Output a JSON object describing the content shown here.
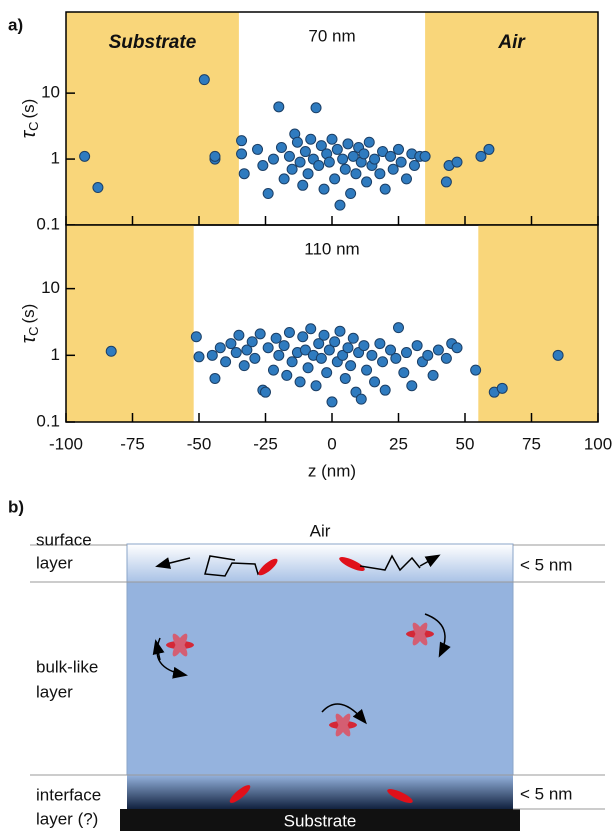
{
  "panel_label": "a)",
  "chart_data": [
    {
      "type": "scatter",
      "annotation": "70 nm",
      "ylabel": [
        "τ",
        "C",
        "(s)"
      ],
      "xlim": [
        -100,
        100
      ],
      "xticks": [
        -100,
        -75,
        -50,
        -25,
        0,
        25,
        50,
        75,
        100
      ],
      "xtick_labels": false,
      "ylim": [
        0.1,
        170
      ],
      "yticks": [
        0.1,
        1,
        10
      ],
      "ylog": true,
      "region_color": "#f9d67a",
      "regions": [
        {
          "label": "Substrate",
          "range": [
            -100,
            -35
          ]
        },
        {
          "label": "Air",
          "range": [
            35,
            100
          ]
        }
      ],
      "color": "#2f7bbf",
      "x": [
        -93,
        -88,
        -48,
        -44,
        -44,
        43,
        44,
        47,
        56,
        59,
        -34,
        -34,
        -33,
        -28,
        -26,
        -24,
        -22,
        -20,
        -19,
        -18,
        -16,
        -15,
        -14,
        -13,
        -12,
        -11,
        -10,
        -9,
        -8,
        -7,
        -6,
        -5,
        -4,
        -3,
        -2,
        -1,
        0,
        1,
        2,
        3,
        4,
        5,
        6,
        7,
        8,
        9,
        10,
        11,
        12,
        13,
        14,
        15,
        16,
        18,
        19,
        20,
        22,
        23,
        25,
        26,
        28,
        30,
        31,
        33,
        35
      ],
      "values": [
        1.1,
        0.37,
        16,
        1.0,
        1.1,
        0.45,
        0.8,
        0.9,
        1.1,
        1.4,
        1.9,
        1.2,
        0.6,
        1.4,
        0.8,
        0.3,
        1.0,
        6.2,
        1.5,
        0.5,
        1.1,
        0.7,
        2.4,
        1.8,
        0.9,
        0.4,
        1.3,
        0.6,
        2.0,
        1.0,
        6.0,
        0.8,
        1.6,
        0.35,
        1.2,
        0.9,
        2.0,
        0.5,
        1.4,
        0.2,
        1.0,
        0.7,
        1.7,
        0.3,
        1.1,
        0.6,
        1.5,
        0.9,
        1.2,
        0.45,
        1.8,
        0.8,
        1.0,
        0.6,
        1.3,
        0.35,
        1.1,
        0.7,
        1.4,
        0.9,
        0.5,
        1.2,
        0.8,
        1.1,
        1.1
      ]
    },
    {
      "type": "scatter",
      "annotation": "110 nm",
      "ylabel": [
        "τ",
        "C",
        "(s)"
      ],
      "xlabel": "z (nm)",
      "xlim": [
        -100,
        100
      ],
      "xticks": [
        -100,
        -75,
        -50,
        -25,
        0,
        25,
        50,
        75,
        100
      ],
      "xtick_labels": true,
      "ylim": [
        0.1,
        90
      ],
      "yticks": [
        0.1,
        1,
        10
      ],
      "ylog": true,
      "region_color": "#f9d67a",
      "regions": [
        {
          "range": [
            -100,
            -52
          ]
        },
        {
          "range": [
            55,
            100
          ]
        }
      ],
      "color": "#2f7bbf",
      "x": [
        -83,
        -51,
        -50,
        -44,
        54,
        61,
        64,
        85,
        -45,
        -42,
        -40,
        -38,
        -36,
        -35,
        -33,
        -32,
        -30,
        -29,
        -27,
        -26,
        -25,
        -24,
        -22,
        -21,
        -20,
        -18,
        -17,
        -16,
        -15,
        -13,
        -12,
        -11,
        -10,
        -9,
        -8,
        -7,
        -6,
        -5,
        -4,
        -3,
        -2,
        -1,
        0,
        1,
        2,
        3,
        4,
        5,
        6,
        7,
        8,
        9,
        10,
        11,
        12,
        13,
        15,
        16,
        18,
        19,
        20,
        22,
        24,
        25,
        27,
        28,
        30,
        32,
        34,
        36,
        38,
        40,
        43,
        45,
        47
      ],
      "values": [
        1.15,
        1.9,
        0.95,
        0.45,
        0.6,
        0.28,
        0.32,
        1.0,
        1.0,
        1.3,
        0.8,
        1.5,
        1.1,
        2.0,
        0.7,
        1.2,
        1.6,
        0.9,
        2.1,
        0.3,
        0.28,
        1.3,
        0.6,
        1.8,
        1.0,
        1.4,
        0.5,
        2.2,
        0.8,
        1.1,
        0.4,
        1.9,
        1.2,
        0.65,
        2.5,
        1.0,
        0.35,
        1.5,
        0.9,
        2.0,
        0.55,
        1.2,
        0.2,
        1.6,
        0.8,
        2.3,
        1.0,
        0.45,
        1.3,
        0.7,
        1.8,
        0.28,
        1.1,
        0.22,
        1.4,
        0.6,
        1.0,
        0.4,
        1.5,
        0.8,
        0.3,
        1.2,
        0.9,
        2.6,
        0.55,
        1.1,
        0.35,
        1.4,
        0.8,
        1.0,
        0.5,
        1.2,
        0.9,
        1.5,
        1.3
      ]
    }
  ],
  "diagram": {
    "label": "b)",
    "top": "Air",
    "surface_layer": [
      "surface",
      "layer"
    ],
    "bulk_layer": [
      "bulk-like",
      "layer"
    ],
    "interface_layer": [
      "interface",
      "layer (?)"
    ],
    "thickness_surface": "< 5 nm",
    "thickness_interface": "< 5 nm",
    "substrate": "Substrate"
  }
}
